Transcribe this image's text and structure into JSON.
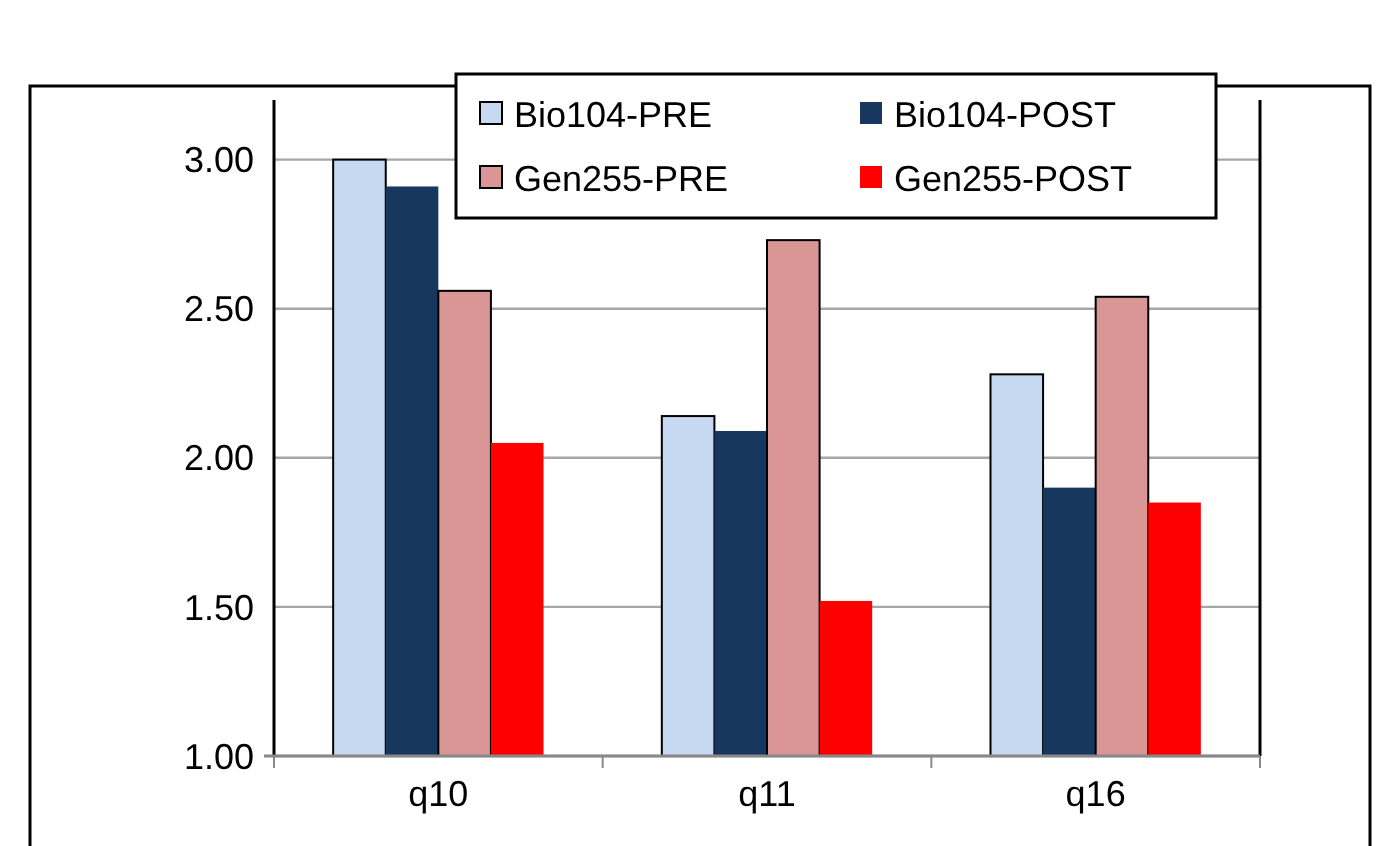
{
  "chart_data": {
    "type": "bar",
    "categories": [
      "q10",
      "q11",
      "q16"
    ],
    "series": [
      {
        "name": "Bio104-PRE",
        "color": "#c6d9f1",
        "values": [
          3.0,
          2.14,
          2.28
        ]
      },
      {
        "name": "Bio104-POST",
        "color": "#17375e",
        "values": [
          2.91,
          2.09,
          1.9
        ]
      },
      {
        "name": "Gen255-PRE",
        "color": "#d99694",
        "values": [
          2.56,
          2.73,
          2.54
        ]
      },
      {
        "name": "Gen255-POST",
        "color": "#ff0000",
        "values": [
          2.05,
          1.52,
          1.85
        ]
      }
    ],
    "ylim": [
      1,
      3.2
    ],
    "yticks": [
      {
        "value": 1,
        "label": "1.00"
      },
      {
        "value": 1.5,
        "label": "1.50"
      },
      {
        "value": 2,
        "label": "2.00"
      },
      {
        "value": 2.5,
        "label": "2.50"
      },
      {
        "value": 3,
        "label": "3.00"
      }
    ],
    "grid": "y",
    "legend": "top"
  }
}
